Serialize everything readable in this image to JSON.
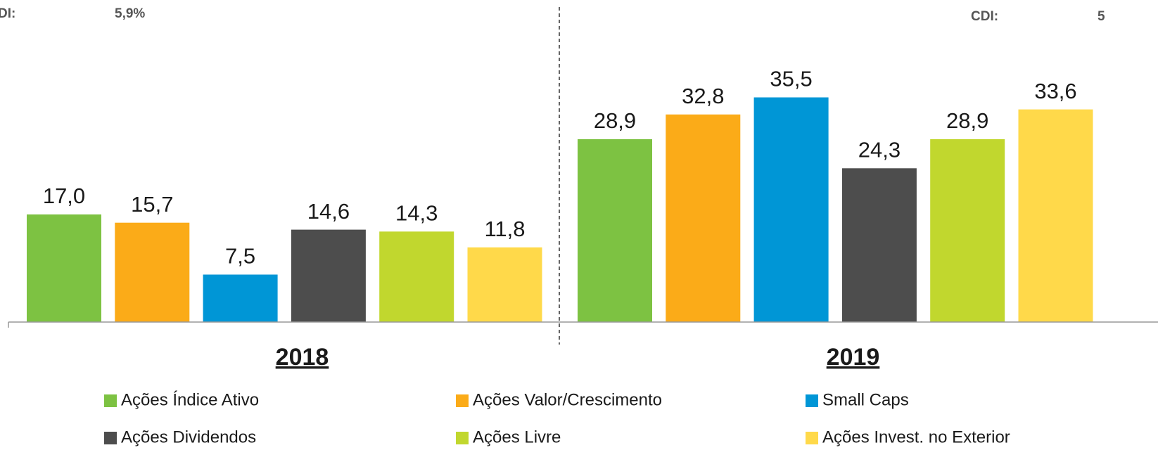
{
  "chart_data": {
    "type": "bar",
    "categories": [
      "2018",
      "2019"
    ],
    "series": [
      {
        "name": "Ações Índice Ativo",
        "color": "#7dc242",
        "values": [
          17.0,
          28.9
        ],
        "value_labels": [
          "17,0",
          "28,9"
        ]
      },
      {
        "name": "Ações Valor/Crescimento",
        "color": "#fbab18",
        "values": [
          15.7,
          32.8
        ],
        "value_labels": [
          "15,7",
          "32,8"
        ]
      },
      {
        "name": "Small Caps",
        "color": "#0096d6",
        "values": [
          7.5,
          35.5
        ],
        "value_labels": [
          "7,5",
          "35,5"
        ]
      },
      {
        "name": "Ações Dividendos",
        "color": "#4d4d4d",
        "values": [
          14.6,
          24.3
        ],
        "value_labels": [
          "14,6",
          "24,3"
        ]
      },
      {
        "name": "Ações Livre",
        "color": "#c1d72e",
        "values": [
          14.3,
          28.9
        ],
        "value_labels": [
          "14,3",
          "28,9"
        ]
      },
      {
        "name": "Ações Invest. no Exterior",
        "color": "#ffd94a",
        "values": [
          11.8,
          33.6
        ],
        "value_labels": [
          "11,8",
          "33,6"
        ]
      }
    ],
    "ylim": [
      0,
      40
    ],
    "annotations": [
      {
        "text": "DI:"
      },
      {
        "text": "5,9%"
      },
      {
        "text": "CDI:"
      },
      {
        "text": "5"
      }
    ]
  }
}
